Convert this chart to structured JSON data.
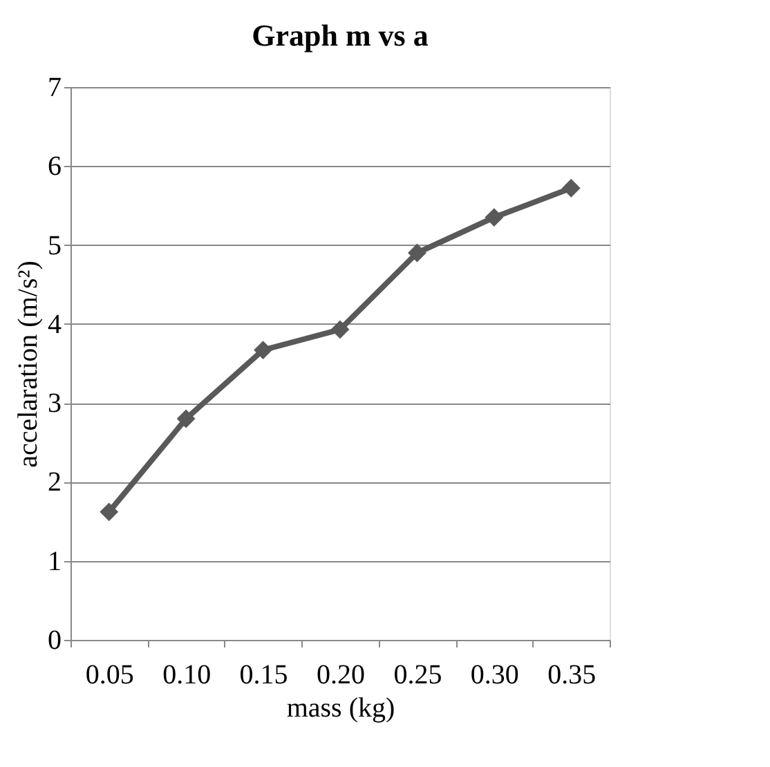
{
  "chart_data": {
    "type": "line",
    "title": "Graph m vs a",
    "xlabel": "mass (kg)",
    "ylabel": "accelaration (m/s²)",
    "categories": [
      "0.05",
      "0.10",
      "0.15",
      "0.20",
      "0.25",
      "0.30",
      "0.35"
    ],
    "series": [
      {
        "color": "#595959",
        "values": [
          1.62,
          2.8,
          3.67,
          3.93,
          4.9,
          5.35,
          5.72
        ]
      }
    ],
    "ylim": [
      0,
      7
    ],
    "yticks": [
      0,
      1,
      2,
      3,
      4,
      5,
      6,
      7
    ],
    "grid": "y",
    "marker": "diamond"
  }
}
